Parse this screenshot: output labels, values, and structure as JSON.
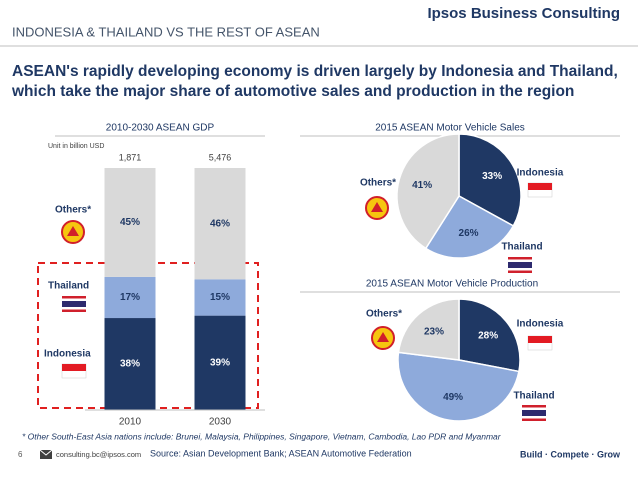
{
  "header": {
    "section": "INDONESIA & THAILAND VS THE REST OF ASEAN",
    "brand": "Ipsos Business Consulting"
  },
  "headline": [
    "ASEAN's rapidly developing economy is driven largely by Indonesia and Thailand,",
    "which take the major share of automotive sales and production in the region"
  ],
  "chart_data": [
    {
      "type": "bar",
      "stacked": true,
      "title": "2010-2030  ASEAN GDP",
      "unit_note": "Unit in billion USD",
      "categories": [
        "2010",
        "2030"
      ],
      "totals": [
        {
          "value": 1871,
          "label": "1,871"
        },
        {
          "value": 5476,
          "label": "5,476"
        }
      ],
      "ylim": [
        0,
        100
      ],
      "series": [
        {
          "name": "Indonesia",
          "color": "#1f3864",
          "values": [
            38,
            39
          ],
          "value_labels": [
            "38%",
            "39%"
          ]
        },
        {
          "name": "Thailand",
          "color": "#8eaadb",
          "values": [
            17,
            15
          ],
          "value_labels": [
            "17%",
            "15%"
          ]
        },
        {
          "name": "Others*",
          "color": "#d9d9d9",
          "values": [
            45,
            46
          ],
          "value_labels": [
            "45%",
            "46%"
          ]
        }
      ]
    },
    {
      "type": "pie",
      "title": "2015 ASEAN Motor Vehicle Sales",
      "categories": [
        "Indonesia",
        "Thailand",
        "Others*"
      ],
      "values": [
        33,
        26,
        41
      ],
      "value_labels": [
        "33%",
        "26%",
        "41%"
      ],
      "colors": [
        "#1f3864",
        "#8eaadb",
        "#d9d9d9"
      ]
    },
    {
      "type": "pie",
      "title": "2015 ASEAN Motor Vehicle Production",
      "categories": [
        "Indonesia",
        "Thailand",
        "Others*"
      ],
      "values": [
        28,
        49,
        23
      ],
      "value_labels": [
        "28%",
        "49%",
        "23%"
      ],
      "colors": [
        "#1f3864",
        "#8eaadb",
        "#d9d9d9"
      ]
    }
  ],
  "footnote": "* Other South-East Asia nations include: Brunei, Malaysia, Philippines, Singapore, Vietnam, Cambodia, Lao PDR and Myanmar",
  "footer": {
    "page": "6",
    "email": "consulting.bc@ipsos.com",
    "source": "Source: Asian Development Bank; ASEAN Automotive Federation",
    "tagline": "Build · Compete · Grow"
  }
}
